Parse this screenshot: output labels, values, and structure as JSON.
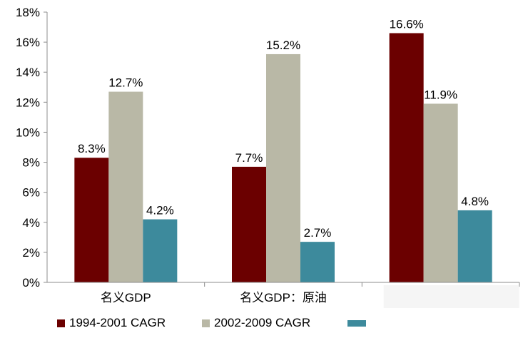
{
  "chart_data": {
    "type": "bar",
    "title": "",
    "xlabel": "",
    "ylabel": "",
    "ylim": [
      0,
      18
    ],
    "yticks": [
      "0%",
      "2%",
      "4%",
      "6%",
      "8%",
      "10%",
      "12%",
      "14%",
      "16%",
      "18%"
    ],
    "categories": [
      "名义GDP",
      "名义GDP：原油",
      ""
    ],
    "series": [
      {
        "name": "1994-2001 CAGR",
        "color": "#6b0000",
        "values": [
          8.3,
          7.7,
          16.6
        ],
        "labels": [
          "8.3%",
          "7.7%",
          "16.6%"
        ]
      },
      {
        "name": "2002-2009 CAGR",
        "color": "#b9b8a6",
        "values": [
          12.7,
          15.2,
          11.9
        ],
        "labels": [
          "12.7%",
          "15.2%",
          "11.9%"
        ]
      },
      {
        "name": "",
        "color": "#3d8a9c",
        "values": [
          4.2,
          2.7,
          4.8
        ],
        "labels": [
          "4.2%",
          "2.7%",
          "4.8%"
        ]
      }
    ],
    "grid": false,
    "legend_position": "bottom"
  }
}
